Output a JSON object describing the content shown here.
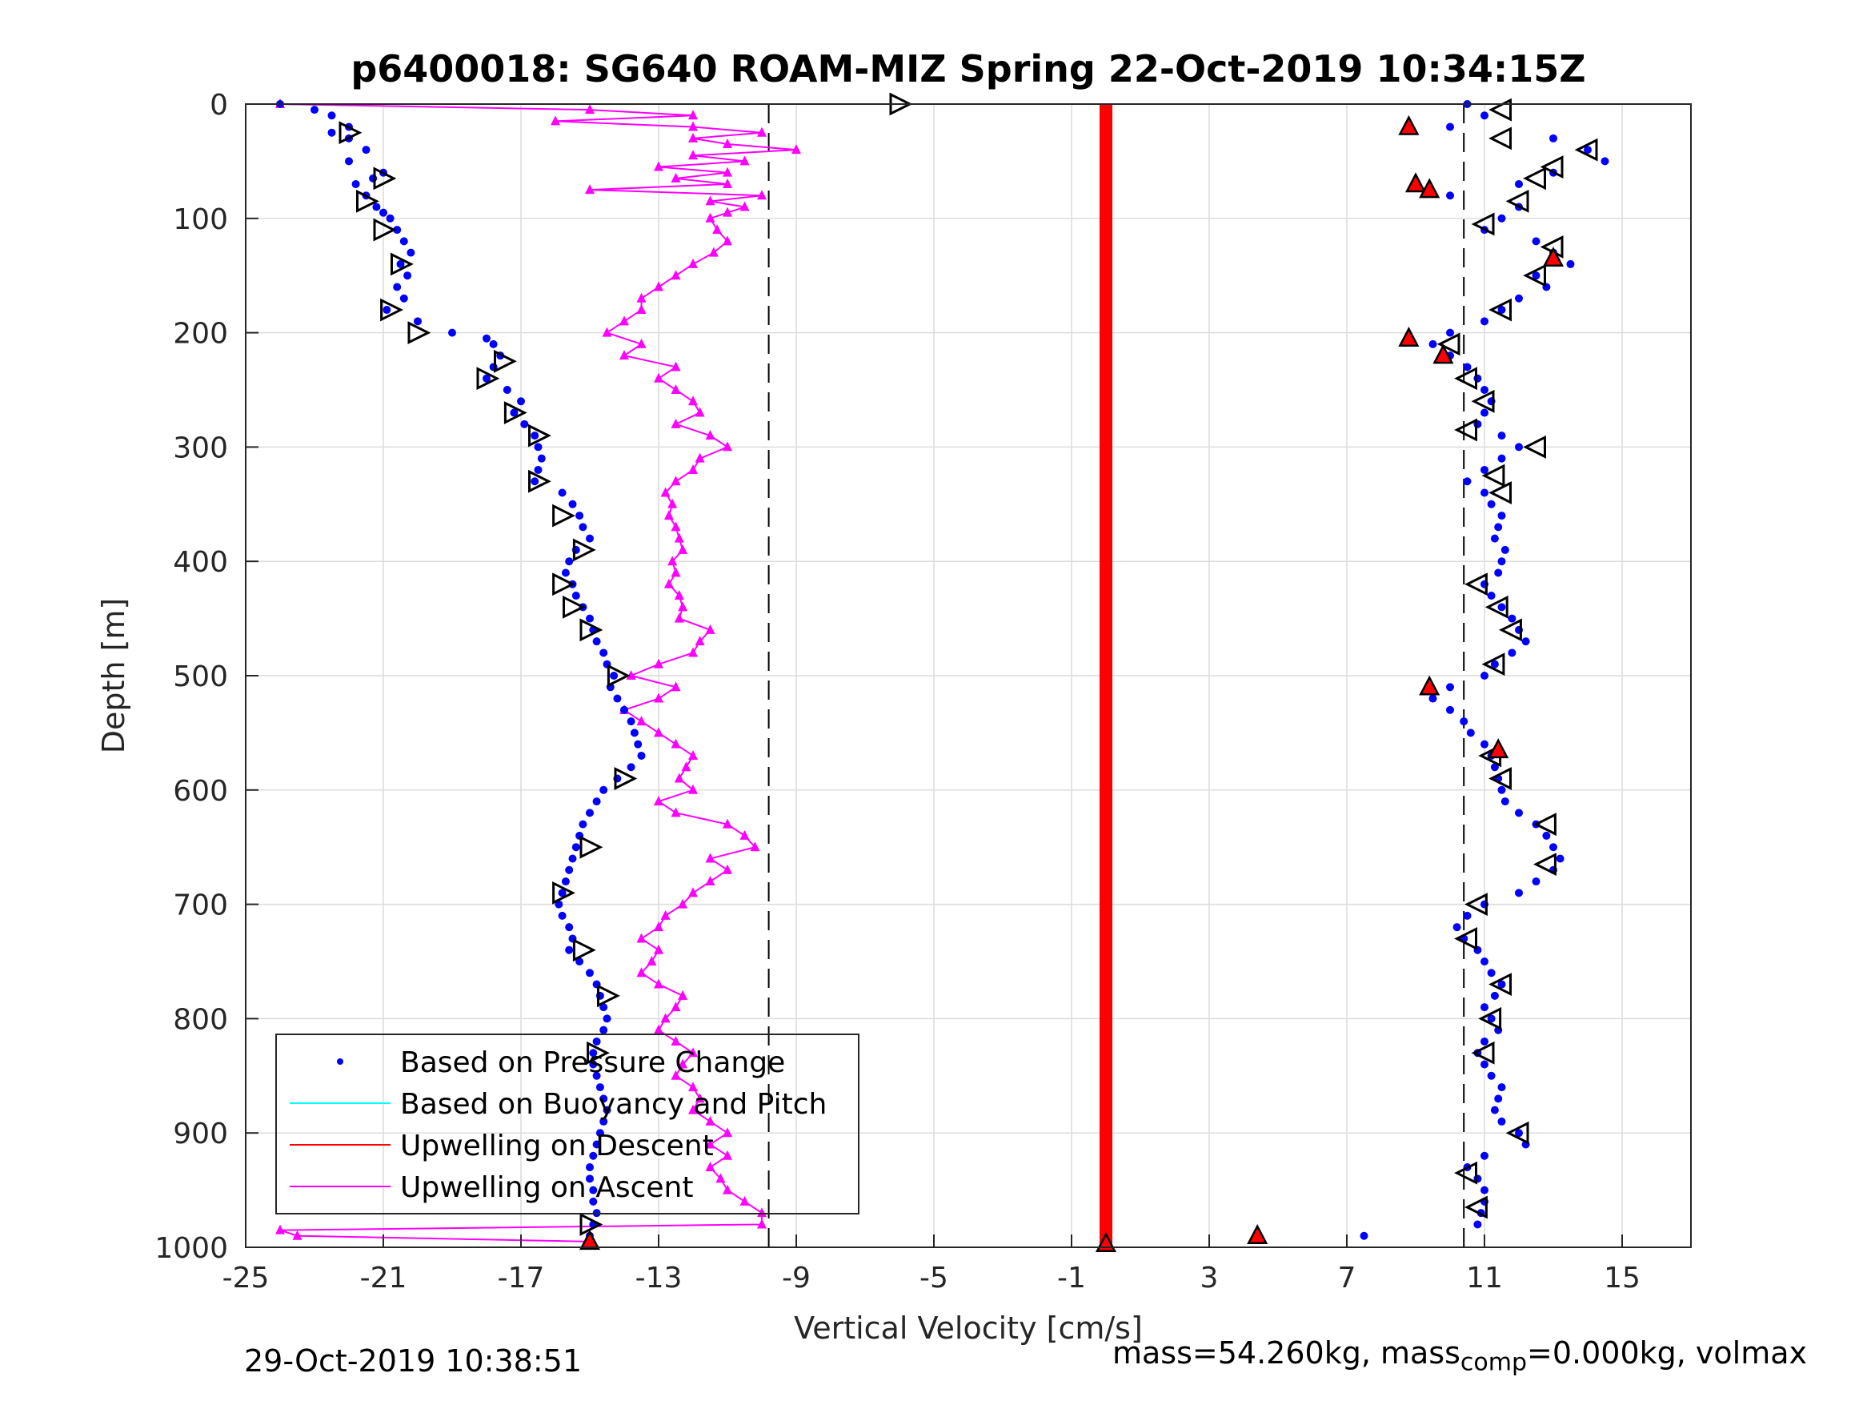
{
  "chart_data": {
    "type": "scatter",
    "title": "p6400018: SG640 ROAM-MIZ Spring 22-Oct-2019 10:34:15Z",
    "xlabel": "Vertical Velocity [cm/s]",
    "ylabel": "Depth [m]",
    "xlim": [
      -25,
      17
    ],
    "ylim": [
      1000,
      0
    ],
    "y_reversed": true,
    "xticks": [
      -25,
      -21,
      -17,
      -13,
      -9,
      -5,
      -1,
      3,
      7,
      11,
      15
    ],
    "yticks": [
      0,
      100,
      200,
      300,
      400,
      500,
      600,
      700,
      800,
      900,
      1000
    ],
    "grid": true,
    "legend_position": "bottom-left",
    "reference_lines": [
      -9.8,
      10.4
    ],
    "series": [
      {
        "name": "Based on Pressure Change",
        "style": "dots",
        "color": "#0000ff",
        "descent": {
          "depth": [
            0,
            5,
            10,
            20,
            25,
            30,
            40,
            50,
            60,
            65,
            70,
            80,
            90,
            95,
            100,
            110,
            120,
            130,
            140,
            150,
            160,
            170,
            180,
            190,
            200,
            205,
            210,
            220,
            230,
            240,
            250,
            260,
            270,
            280,
            290,
            300,
            310,
            320,
            330,
            340,
            350,
            360,
            370,
            380,
            390,
            400,
            410,
            420,
            430,
            440,
            450,
            460,
            470,
            480,
            490,
            500,
            510,
            520,
            530,
            540,
            550,
            560,
            570,
            580,
            590,
            600,
            610,
            620,
            630,
            640,
            650,
            660,
            670,
            680,
            690,
            700,
            710,
            720,
            730,
            740,
            750,
            760,
            770,
            780,
            790,
            800,
            810,
            820,
            830,
            840,
            850,
            860,
            870,
            880,
            890,
            900,
            910,
            920,
            930,
            940,
            950,
            960,
            970,
            980,
            990,
            995
          ],
          "velocity": [
            -24.0,
            -23.0,
            -22.5,
            -22.0,
            -22.5,
            -22.0,
            -21.5,
            -22.0,
            -21.0,
            -21.3,
            -21.8,
            -21.5,
            -21.2,
            -21.0,
            -20.8,
            -20.6,
            -20.4,
            -20.2,
            -20.5,
            -20.3,
            -20.6,
            -20.4,
            -20.9,
            -20.0,
            -19.0,
            -18.0,
            -17.8,
            -17.6,
            -17.8,
            -18.0,
            -17.4,
            -17.0,
            -17.2,
            -16.9,
            -16.6,
            -16.5,
            -16.4,
            -16.5,
            -16.6,
            -15.8,
            -15.5,
            -15.3,
            -15.2,
            -15.0,
            -15.4,
            -15.6,
            -15.7,
            -15.5,
            -15.4,
            -15.2,
            -15.0,
            -14.9,
            -14.8,
            -14.6,
            -14.5,
            -14.3,
            -14.4,
            -14.2,
            -14.0,
            -13.8,
            -13.7,
            -13.6,
            -13.5,
            -13.8,
            -14.2,
            -14.6,
            -14.8,
            -15.0,
            -15.2,
            -15.3,
            -15.4,
            -15.5,
            -15.6,
            -15.7,
            -15.8,
            -15.9,
            -15.8,
            -15.6,
            -15.5,
            -15.6,
            -15.3,
            -15.0,
            -14.8,
            -14.7,
            -14.6,
            -14.5,
            -14.6,
            -14.8,
            -14.9,
            -14.9,
            -14.8,
            -14.7,
            -14.6,
            -14.5,
            -14.6,
            -14.7,
            -14.8,
            -14.9,
            -15.0,
            -15.0,
            -14.9,
            -14.9,
            -14.8,
            -14.9,
            -15.0,
            -15.0
          ]
        },
        "ascent": {
          "depth": [
            0,
            10,
            20,
            30,
            40,
            50,
            60,
            70,
            80,
            90,
            100,
            110,
            120,
            130,
            140,
            150,
            160,
            170,
            180,
            190,
            200,
            210,
            220,
            230,
            240,
            250,
            260,
            270,
            280,
            290,
            300,
            310,
            320,
            330,
            340,
            350,
            360,
            370,
            380,
            390,
            400,
            410,
            420,
            430,
            440,
            450,
            460,
            470,
            480,
            490,
            500,
            510,
            520,
            530,
            540,
            550,
            560,
            570,
            580,
            590,
            600,
            610,
            620,
            630,
            640,
            650,
            660,
            670,
            680,
            690,
            700,
            710,
            720,
            730,
            740,
            750,
            760,
            770,
            780,
            790,
            800,
            810,
            820,
            830,
            840,
            850,
            860,
            870,
            880,
            890,
            900,
            910,
            920,
            930,
            940,
            950,
            960,
            970,
            980,
            990
          ],
          "velocity": [
            10.5,
            11.0,
            10.0,
            13.0,
            14.0,
            14.5,
            13.0,
            12.0,
            10.0,
            12.0,
            11.5,
            11.0,
            12.5,
            13.0,
            13.5,
            12.5,
            12.8,
            12.0,
            11.5,
            11.0,
            10.0,
            9.5,
            10.0,
            10.5,
            10.8,
            11.0,
            11.2,
            11.0,
            10.8,
            11.5,
            12.0,
            11.5,
            11.0,
            10.5,
            11.0,
            11.2,
            11.5,
            11.4,
            11.3,
            11.6,
            11.5,
            11.4,
            11.0,
            11.2,
            11.5,
            11.8,
            12.0,
            12.2,
            11.8,
            11.3,
            11.0,
            10.0,
            9.5,
            10.0,
            10.4,
            10.6,
            11.0,
            11.2,
            11.3,
            11.4,
            11.5,
            11.6,
            12.0,
            12.5,
            12.8,
            13.0,
            13.2,
            13.0,
            12.5,
            12.0,
            11.0,
            10.5,
            10.2,
            10.4,
            10.8,
            11.0,
            11.2,
            11.5,
            11.3,
            11.0,
            11.2,
            11.4,
            11.0,
            10.8,
            11.0,
            11.2,
            11.5,
            11.4,
            11.3,
            11.5,
            12.0,
            12.2,
            11.0,
            10.5,
            10.8,
            11.0,
            11.0,
            10.9,
            10.8,
            7.5
          ]
        }
      },
      {
        "name": "Based on Buoyancy and Pitch",
        "style": "line",
        "color": "#00ffff",
        "depth": [],
        "velocity": []
      },
      {
        "name": "Upwelling on Descent",
        "style": "line",
        "color": "#ff0000",
        "depth": [
          0,
          100,
          200,
          300,
          400,
          500,
          600,
          700,
          800,
          900,
          1000
        ],
        "velocity": [
          0,
          0,
          0,
          0,
          0,
          0,
          0,
          0,
          0,
          0,
          0
        ]
      },
      {
        "name": "Upwelling on Ascent",
        "style": "line-triangles",
        "color": "#ff00ff",
        "depth": [
          0,
          5,
          10,
          15,
          20,
          25,
          30,
          35,
          40,
          45,
          50,
          55,
          60,
          65,
          70,
          75,
          80,
          85,
          90,
          95,
          100,
          110,
          120,
          130,
          140,
          150,
          160,
          170,
          180,
          190,
          200,
          210,
          220,
          230,
          240,
          250,
          260,
          270,
          280,
          290,
          300,
          310,
          320,
          330,
          340,
          350,
          360,
          370,
          380,
          390,
          400,
          410,
          420,
          430,
          440,
          450,
          460,
          470,
          480,
          490,
          500,
          510,
          520,
          530,
          540,
          550,
          560,
          570,
          580,
          590,
          600,
          610,
          620,
          630,
          640,
          650,
          660,
          670,
          680,
          690,
          700,
          710,
          720,
          730,
          740,
          750,
          760,
          770,
          780,
          790,
          800,
          810,
          820,
          830,
          840,
          850,
          860,
          870,
          880,
          890,
          900,
          910,
          920,
          930,
          940,
          950,
          960,
          970,
          980,
          985,
          990,
          995
        ],
        "velocity": [
          -24.0,
          -15.0,
          -12.0,
          -16.0,
          -12.0,
          -10.0,
          -12.0,
          -11.0,
          -9.0,
          -12.0,
          -10.5,
          -13.0,
          -11.0,
          -12.5,
          -11.0,
          -15.0,
          -10.0,
          -11.5,
          -10.5,
          -11.0,
          -11.5,
          -11.3,
          -11.0,
          -11.4,
          -12.0,
          -12.5,
          -13.0,
          -13.5,
          -13.5,
          -14.0,
          -14.5,
          -13.5,
          -14.0,
          -12.5,
          -13.0,
          -12.5,
          -12.0,
          -11.8,
          -12.5,
          -11.5,
          -11.0,
          -11.8,
          -12.0,
          -12.5,
          -12.8,
          -12.6,
          -12.7,
          -12.5,
          -12.4,
          -12.3,
          -12.6,
          -12.5,
          -12.7,
          -12.4,
          -12.3,
          -12.4,
          -11.5,
          -11.8,
          -12.0,
          -13.0,
          -13.8,
          -12.5,
          -13.0,
          -14.0,
          -13.5,
          -13.0,
          -12.5,
          -12.0,
          -12.2,
          -12.4,
          -12.0,
          -13.0,
          -12.5,
          -11.0,
          -10.5,
          -10.2,
          -11.5,
          -11.0,
          -11.5,
          -12.0,
          -12.3,
          -12.8,
          -13.0,
          -13.5,
          -13.0,
          -13.2,
          -13.5,
          -13.0,
          -12.3,
          -12.5,
          -12.8,
          -13.0,
          -12.5,
          -12.0,
          -12.3,
          -12.5,
          -12.0,
          -11.8,
          -12.0,
          -11.5,
          -11.0,
          -11.5,
          -11.0,
          -11.5,
          -11.2,
          -11.0,
          -10.5,
          -10.0,
          -10.0,
          -24.0,
          -23.5,
          -15.0
        ]
      }
    ],
    "markers": {
      "open_triangles": {
        "color": "#000000",
        "descent": [
          [
            0,
            -6.0
          ],
          [
            25,
            -22.0
          ],
          [
            65,
            -21.0
          ],
          [
            85,
            -21.5
          ],
          [
            110,
            -21.0
          ],
          [
            140,
            -20.5
          ],
          [
            180,
            -20.8
          ],
          [
            200,
            -20.0
          ],
          [
            225,
            -17.5
          ],
          [
            240,
            -18.0
          ],
          [
            270,
            -17.2
          ],
          [
            290,
            -16.5
          ],
          [
            330,
            -16.5
          ],
          [
            360,
            -15.8
          ],
          [
            390,
            -15.2
          ],
          [
            420,
            -15.8
          ],
          [
            440,
            -15.5
          ],
          [
            460,
            -15.0
          ],
          [
            500,
            -14.2
          ],
          [
            590,
            -14.0
          ],
          [
            650,
            -15.0
          ],
          [
            690,
            -15.8
          ],
          [
            740,
            -15.2
          ],
          [
            780,
            -14.5
          ],
          [
            830,
            -14.8
          ],
          [
            980,
            -15.0
          ]
        ],
        "ascent": [
          [
            5,
            11.5
          ],
          [
            30,
            11.5
          ],
          [
            40,
            14.0
          ],
          [
            55,
            13.0
          ],
          [
            65,
            12.5
          ],
          [
            85,
            12.0
          ],
          [
            105,
            11.0
          ],
          [
            125,
            13.0
          ],
          [
            150,
            12.5
          ],
          [
            180,
            11.5
          ],
          [
            210,
            10.0
          ],
          [
            240,
            10.5
          ],
          [
            260,
            11.0
          ],
          [
            285,
            10.5
          ],
          [
            300,
            12.5
          ],
          [
            325,
            11.3
          ],
          [
            340,
            11.5
          ],
          [
            420,
            10.8
          ],
          [
            440,
            11.4
          ],
          [
            460,
            11.8
          ],
          [
            490,
            11.3
          ],
          [
            570,
            11.2
          ],
          [
            590,
            11.5
          ],
          [
            630,
            12.8
          ],
          [
            665,
            12.8
          ],
          [
            700,
            10.8
          ],
          [
            730,
            10.5
          ],
          [
            770,
            11.5
          ],
          [
            800,
            11.2
          ],
          [
            830,
            11.0
          ],
          [
            900,
            12.0
          ],
          [
            935,
            10.5
          ],
          [
            965,
            10.8
          ]
        ]
      },
      "red_markers": {
        "color": "#ff0000",
        "points": [
          [
            20,
            8.8
          ],
          [
            70,
            9.0
          ],
          [
            75,
            9.4
          ],
          [
            135,
            13.0
          ],
          [
            205,
            8.8
          ],
          [
            220,
            9.8
          ],
          [
            510,
            9.4
          ],
          [
            565,
            11.4
          ],
          [
            990,
            4.4
          ],
          [
            995,
            -15.0
          ],
          [
            997,
            0.0
          ]
        ]
      }
    }
  },
  "footer": {
    "left": "29-Oct-2019 10:38:51",
    "right_main": "mass=54.260kg, mass",
    "right_sub": "comp",
    "right_tail": "=0.000kg, volmax"
  }
}
